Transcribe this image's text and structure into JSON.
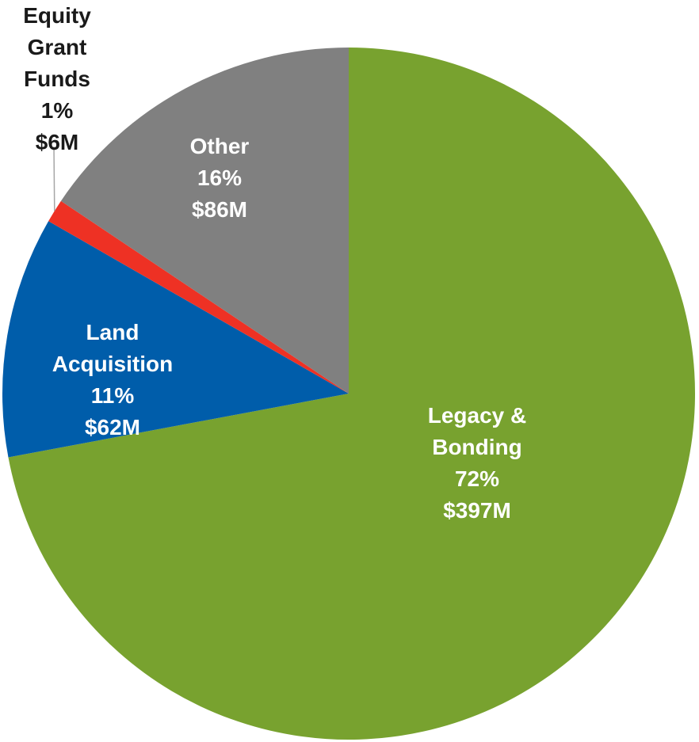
{
  "chart_data": {
    "type": "pie",
    "categories": [
      "Legacy & Bonding",
      "Land Acquisition",
      "Equity Grant Funds",
      "Other"
    ],
    "values": [
      397,
      62,
      6,
      86
    ],
    "value_labels": [
      "$397M",
      "$62M",
      "$6M",
      "$86M"
    ],
    "percents": [
      72,
      11,
      1,
      16
    ],
    "percent_labels": [
      "72%",
      "11%",
      "1%",
      "16%"
    ],
    "colors": [
      "#78a22f",
      "#005daa",
      "#ee3124",
      "#808080"
    ]
  }
}
